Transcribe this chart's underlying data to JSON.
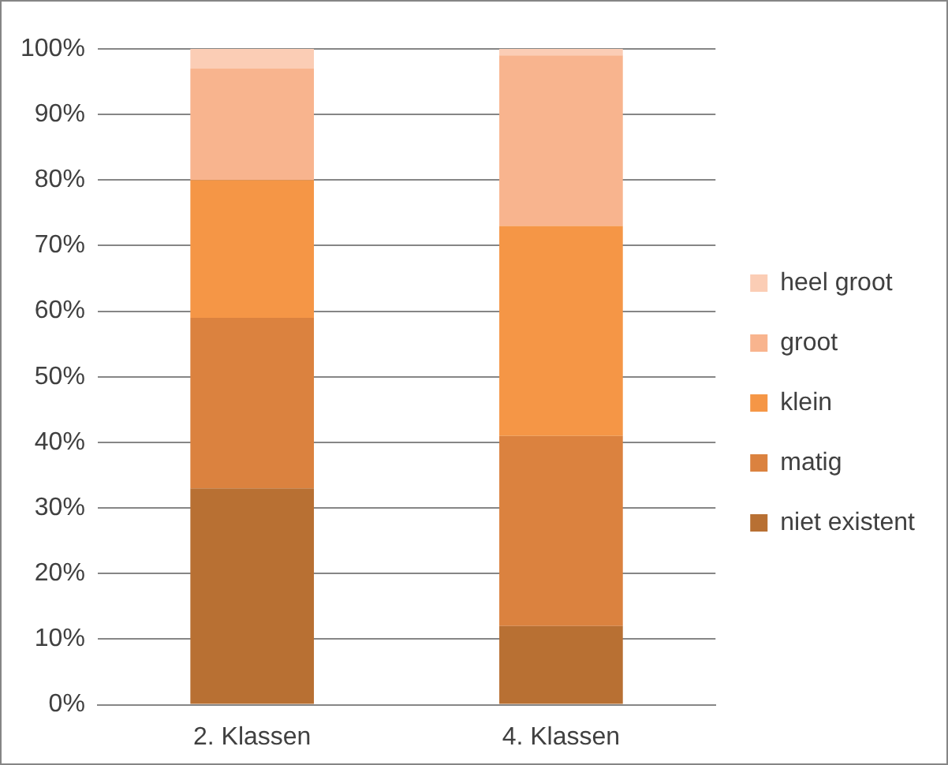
{
  "chart_data": {
    "type": "bar",
    "stacked": true,
    "categories": [
      "2. Klassen",
      "4. Klassen"
    ],
    "series": [
      {
        "name": "niet existent",
        "color": "#b87033",
        "values": [
          33,
          12
        ]
      },
      {
        "name": "matig",
        "color": "#db823f",
        "values": [
          26,
          29
        ]
      },
      {
        "name": "klein",
        "color": "#f59646",
        "values": [
          21,
          32
        ]
      },
      {
        "name": "groot",
        "color": "#f8b48e",
        "values": [
          17,
          26
        ]
      },
      {
        "name": "heel groot",
        "color": "#fbcdb5",
        "values": [
          3,
          1
        ]
      }
    ],
    "ylim": [
      0,
      100
    ],
    "yticks": [
      {
        "value": 0,
        "label": "0%"
      },
      {
        "value": 10,
        "label": "10%"
      },
      {
        "value": 20,
        "label": "20%"
      },
      {
        "value": 30,
        "label": "30%"
      },
      {
        "value": 40,
        "label": "40%"
      },
      {
        "value": 50,
        "label": "50%"
      },
      {
        "value": 60,
        "label": "60%"
      },
      {
        "value": 70,
        "label": "70%"
      },
      {
        "value": 80,
        "label": "80%"
      },
      {
        "value": 90,
        "label": "90%"
      },
      {
        "value": 100,
        "label": "100%"
      }
    ],
    "grid": "y",
    "legend": "right"
  }
}
